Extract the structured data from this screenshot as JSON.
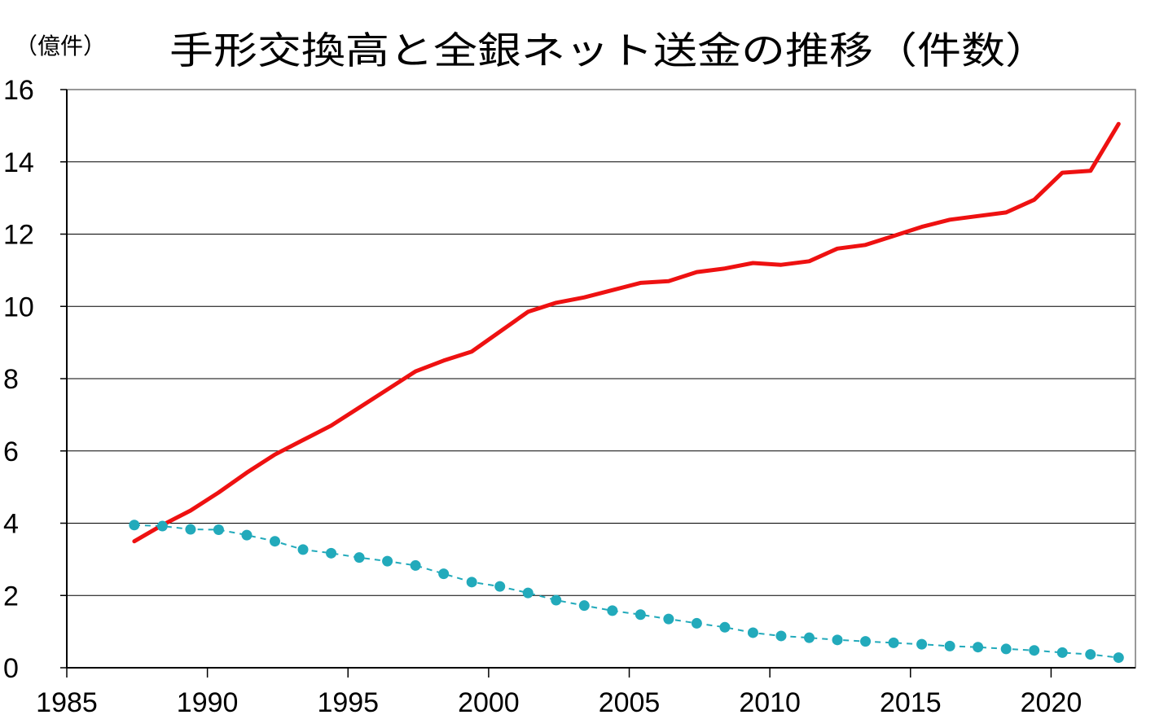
{
  "chart_data": {
    "type": "line",
    "title": "手形交換高と全銀ネット送金の推移（件数）",
    "unit_label": "（億件）",
    "xlabel": "",
    "ylabel": "",
    "xlim": [
      1985,
      2023
    ],
    "ylim": [
      0,
      16
    ],
    "x_ticks": [
      1985,
      1990,
      1995,
      2000,
      2005,
      2010,
      2015,
      2020
    ],
    "y_ticks": [
      0,
      2,
      4,
      6,
      8,
      10,
      12,
      14,
      16
    ],
    "grid": true,
    "legend": "none",
    "series": [
      {
        "color": "#ee1111",
        "style": "solid",
        "points": [
          [
            1987.4,
            3.5
          ],
          [
            1988.4,
            3.95
          ],
          [
            1989.4,
            4.35
          ],
          [
            1990.4,
            4.85
          ],
          [
            1991.4,
            5.4
          ],
          [
            1992.4,
            5.9
          ],
          [
            1993.4,
            6.3
          ],
          [
            1994.4,
            6.7
          ],
          [
            1995.4,
            7.2
          ],
          [
            1996.4,
            7.7
          ],
          [
            1997.4,
            8.2
          ],
          [
            1998.4,
            8.5
          ],
          [
            1999.4,
            8.75
          ],
          [
            2000.4,
            9.3
          ],
          [
            2001.4,
            9.85
          ],
          [
            2002.4,
            10.1
          ],
          [
            2003.4,
            10.25
          ],
          [
            2004.4,
            10.45
          ],
          [
            2005.4,
            10.65
          ],
          [
            2006.4,
            10.7
          ],
          [
            2007.4,
            10.95
          ],
          [
            2008.4,
            11.05
          ],
          [
            2009.4,
            11.2
          ],
          [
            2010.4,
            11.15
          ],
          [
            2011.4,
            11.25
          ],
          [
            2012.4,
            11.6
          ],
          [
            2013.4,
            11.7
          ],
          [
            2014.4,
            11.95
          ],
          [
            2015.4,
            12.2
          ],
          [
            2016.4,
            12.4
          ],
          [
            2017.4,
            12.5
          ],
          [
            2018.4,
            12.6
          ],
          [
            2019.4,
            12.95
          ],
          [
            2020.4,
            13.7
          ],
          [
            2021.4,
            13.75
          ],
          [
            2022.4,
            15.05
          ]
        ]
      },
      {
        "color": "#22aabb",
        "style": "dashed-markers",
        "points": [
          [
            1987.4,
            3.95
          ],
          [
            1988.4,
            3.92
          ],
          [
            1989.4,
            3.83
          ],
          [
            1990.4,
            3.82
          ],
          [
            1991.4,
            3.67
          ],
          [
            1992.4,
            3.5
          ],
          [
            1993.4,
            3.27
          ],
          [
            1994.4,
            3.17
          ],
          [
            1995.4,
            3.05
          ],
          [
            1996.4,
            2.95
          ],
          [
            1997.4,
            2.83
          ],
          [
            1998.4,
            2.6
          ],
          [
            1999.4,
            2.37
          ],
          [
            2000.4,
            2.25
          ],
          [
            2001.4,
            2.07
          ],
          [
            2002.4,
            1.87
          ],
          [
            2003.4,
            1.72
          ],
          [
            2004.4,
            1.58
          ],
          [
            2005.4,
            1.47
          ],
          [
            2006.4,
            1.35
          ],
          [
            2007.4,
            1.23
          ],
          [
            2008.4,
            1.12
          ],
          [
            2009.4,
            0.97
          ],
          [
            2010.4,
            0.88
          ],
          [
            2011.4,
            0.83
          ],
          [
            2012.4,
            0.77
          ],
          [
            2013.4,
            0.73
          ],
          [
            2014.4,
            0.69
          ],
          [
            2015.4,
            0.65
          ],
          [
            2016.4,
            0.6
          ],
          [
            2017.4,
            0.57
          ],
          [
            2018.4,
            0.52
          ],
          [
            2019.4,
            0.48
          ],
          [
            2020.4,
            0.42
          ],
          [
            2021.4,
            0.37
          ],
          [
            2022.4,
            0.28
          ]
        ]
      }
    ]
  }
}
